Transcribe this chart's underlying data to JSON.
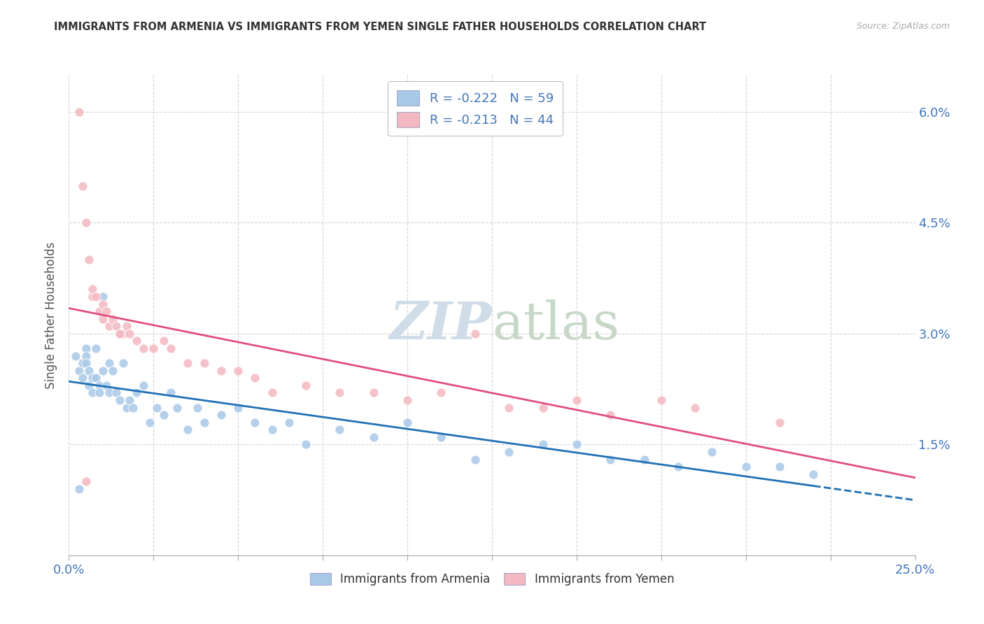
{
  "title": "IMMIGRANTS FROM ARMENIA VS IMMIGRANTS FROM YEMEN SINGLE FATHER HOUSEHOLDS CORRELATION CHART",
  "source": "Source: ZipAtlas.com",
  "ylabel": "Single Father Households",
  "legend_r_n": [
    {
      "R": -0.222,
      "N": 59,
      "color": "#a8c8e8"
    },
    {
      "R": -0.213,
      "N": 44,
      "color": "#f4b8c0"
    }
  ],
  "legend_labels": [
    "Immigrants from Armenia",
    "Immigrants from Yemen"
  ],
  "xlim": [
    0.0,
    0.25
  ],
  "ylim": [
    0.0,
    0.065
  ],
  "xtick_positions": [
    0.0,
    0.025,
    0.05,
    0.075,
    0.1,
    0.125,
    0.15,
    0.175,
    0.2,
    0.225,
    0.25
  ],
  "xtick_labels": [
    "0.0%",
    "",
    "",
    "",
    "",
    "",
    "",
    "",
    "",
    "",
    "25.0%"
  ],
  "ytick_positions": [
    0.0,
    0.015,
    0.03,
    0.045,
    0.06
  ],
  "ytick_labels": [
    "",
    "1.5%",
    "3.0%",
    "4.5%",
    "6.0%"
  ],
  "color_armenia": "#a8c8e8",
  "color_yemen": "#f4b8c0",
  "line_color_armenia": "#2171b5",
  "line_color_yemen": "#e05080",
  "background_color": "#ffffff",
  "grid_color": "#cccccc",
  "tick_color": "#4477bb",
  "label_color": "#555555",
  "watermark_color": "#d0dde8",
  "armenia_x": [
    0.002,
    0.003,
    0.004,
    0.004,
    0.005,
    0.005,
    0.005,
    0.006,
    0.006,
    0.007,
    0.007,
    0.008,
    0.008,
    0.009,
    0.009,
    0.01,
    0.01,
    0.011,
    0.012,
    0.012,
    0.013,
    0.014,
    0.015,
    0.016,
    0.017,
    0.018,
    0.019,
    0.02,
    0.022,
    0.024,
    0.026,
    0.028,
    0.03,
    0.032,
    0.035,
    0.038,
    0.04,
    0.045,
    0.05,
    0.055,
    0.06,
    0.065,
    0.07,
    0.08,
    0.09,
    0.1,
    0.11,
    0.12,
    0.13,
    0.14,
    0.15,
    0.16,
    0.17,
    0.18,
    0.19,
    0.2,
    0.21,
    0.22,
    0.003
  ],
  "armenia_y": [
    0.027,
    0.025,
    0.026,
    0.024,
    0.028,
    0.027,
    0.026,
    0.025,
    0.023,
    0.024,
    0.022,
    0.028,
    0.024,
    0.023,
    0.022,
    0.035,
    0.025,
    0.023,
    0.026,
    0.022,
    0.025,
    0.022,
    0.021,
    0.026,
    0.02,
    0.021,
    0.02,
    0.022,
    0.023,
    0.018,
    0.02,
    0.019,
    0.022,
    0.02,
    0.017,
    0.02,
    0.018,
    0.019,
    0.02,
    0.018,
    0.017,
    0.018,
    0.015,
    0.017,
    0.016,
    0.018,
    0.016,
    0.013,
    0.014,
    0.015,
    0.015,
    0.013,
    0.013,
    0.012,
    0.014,
    0.012,
    0.012,
    0.011,
    0.009
  ],
  "yemen_x": [
    0.003,
    0.004,
    0.005,
    0.006,
    0.007,
    0.007,
    0.008,
    0.009,
    0.01,
    0.01,
    0.011,
    0.012,
    0.013,
    0.014,
    0.015,
    0.016,
    0.017,
    0.018,
    0.02,
    0.022,
    0.025,
    0.028,
    0.03,
    0.035,
    0.04,
    0.045,
    0.05,
    0.055,
    0.06,
    0.07,
    0.08,
    0.09,
    0.1,
    0.11,
    0.12,
    0.13,
    0.14,
    0.15,
    0.16,
    0.175,
    0.185,
    0.21,
    0.005,
    0.015
  ],
  "yemen_y": [
    0.06,
    0.05,
    0.045,
    0.04,
    0.035,
    0.036,
    0.035,
    0.033,
    0.034,
    0.032,
    0.033,
    0.031,
    0.032,
    0.031,
    0.03,
    0.03,
    0.031,
    0.03,
    0.029,
    0.028,
    0.028,
    0.029,
    0.028,
    0.026,
    0.026,
    0.025,
    0.025,
    0.024,
    0.022,
    0.023,
    0.022,
    0.022,
    0.021,
    0.022,
    0.03,
    0.02,
    0.02,
    0.021,
    0.019,
    0.021,
    0.02,
    0.018,
    0.01,
    0.03
  ]
}
